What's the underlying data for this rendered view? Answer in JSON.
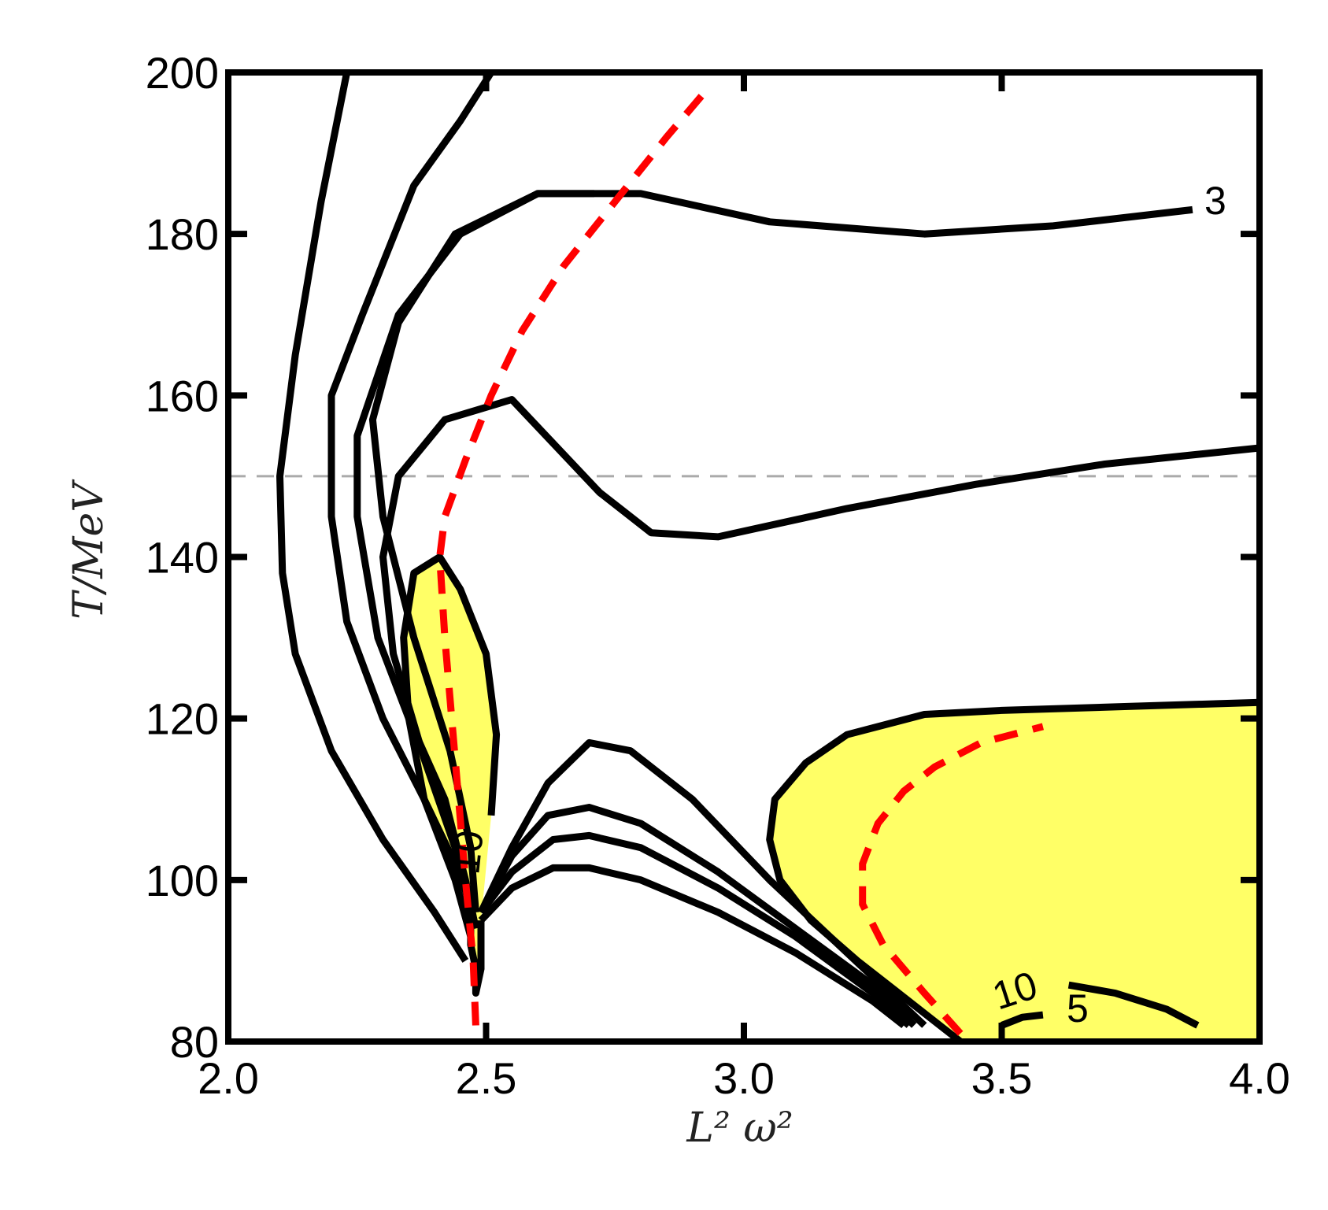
{
  "chart_data": {
    "type": "line",
    "title": "",
    "xlabel": "L² ω²",
    "ylabel": "T/MeV",
    "xlim": [
      2.0,
      4.0
    ],
    "ylim": [
      80,
      200
    ],
    "xticks": [
      "2.0",
      "2.5",
      "3.0",
      "3.5",
      "4.0"
    ],
    "yticks": [
      "80",
      "100",
      "120",
      "140",
      "160",
      "180",
      "200"
    ],
    "xtick_values": [
      2.0,
      2.5,
      3.0,
      3.5,
      4.0
    ],
    "ytick_values": [
      80,
      100,
      120,
      140,
      160,
      180,
      200
    ],
    "reference_line": {
      "y": 150,
      "style": "dashed",
      "color": "#aaaaaa"
    },
    "colors": {
      "contour": "#000000",
      "boundary": "#ff0000",
      "shade": "#ffff66",
      "reference": "#aaaaaa"
    },
    "contour_labels": [
      "3",
      "10",
      "10",
      "5"
    ],
    "series": [
      {
        "kind": "contour",
        "x": [
          2.23,
          2.18,
          2.13,
          2.1,
          2.105,
          2.13,
          2.2,
          2.3,
          2.4,
          2.46
        ],
        "y": [
          200,
          184,
          165,
          150,
          138,
          128,
          116,
          105,
          96,
          90
        ]
      },
      {
        "kind": "contour",
        "x": [
          2.51,
          2.45,
          2.36,
          2.26,
          2.2,
          2.2,
          2.23,
          2.3,
          2.38,
          2.44,
          2.47
        ],
        "y": [
          200,
          194,
          186,
          170,
          160,
          145,
          132,
          120,
          110,
          100,
          93
        ]
      },
      {
        "kind": "contour",
        "x": [
          2.71,
          2.6,
          2.45,
          2.33,
          2.25,
          2.25,
          2.29,
          2.35,
          2.42,
          2.46,
          2.48
        ],
        "y": [
          185,
          185,
          180,
          170,
          155,
          145,
          130,
          120,
          110,
          100,
          94
        ]
      },
      {
        "kind": "contour",
        "x": [
          3.87,
          3.6,
          3.35,
          3.05,
          2.8,
          2.6,
          2.44,
          2.33,
          2.28,
          2.3,
          2.36,
          2.43,
          2.47,
          2.48
        ],
        "y": [
          183,
          181,
          180,
          181.5,
          185,
          185,
          180,
          169,
          157,
          145,
          130,
          116,
          104,
          96
        ]
      },
      {
        "kind": "contour",
        "x": [
          4.0,
          3.7,
          3.45,
          3.2,
          2.95,
          2.82,
          2.72,
          2.55,
          2.42,
          2.33,
          2.3,
          2.32,
          2.38,
          2.44,
          2.47
        ],
        "y": [
          153.5,
          151.5,
          149,
          146,
          142.5,
          143,
          148,
          159.5,
          157,
          150,
          140,
          128,
          115,
          104,
          96
        ]
      },
      {
        "kind": "contour",
        "x": [
          2.51,
          2.52,
          2.5,
          2.45,
          2.41,
          2.36,
          2.34,
          2.35,
          2.38,
          2.44,
          2.47,
          2.47,
          2.48,
          2.48,
          2.49,
          2.49
        ],
        "y": [
          108,
          118,
          128,
          136,
          140,
          138,
          130,
          120,
          110,
          102,
          97,
          92,
          89,
          86,
          89,
          95
        ]
      },
      {
        "kind": "contour",
        "x": [
          2.49,
          2.55,
          2.62,
          2.7,
          2.78,
          2.9,
          3.05,
          3.2,
          3.3,
          3.35
        ],
        "y": [
          96,
          104,
          112,
          117,
          116,
          110,
          100,
          91,
          85,
          82
        ]
      },
      {
        "kind": "contour",
        "x": [
          2.49,
          2.55,
          2.62,
          2.7,
          2.8,
          2.95,
          3.1,
          3.25,
          3.33
        ],
        "y": [
          96,
          103,
          108,
          109,
          107,
          101,
          94,
          87,
          82
        ]
      },
      {
        "kind": "contour",
        "x": [
          2.49,
          2.55,
          2.63,
          2.7,
          2.8,
          2.95,
          3.1,
          3.25,
          3.32
        ],
        "y": [
          96,
          101,
          105,
          105.5,
          104,
          99,
          93,
          86,
          82
        ]
      },
      {
        "kind": "contour",
        "x": [
          2.49,
          2.55,
          2.63,
          2.7,
          2.8,
          2.95,
          3.1,
          3.25,
          3.31
        ],
        "y": [
          95,
          99,
          101.5,
          101.5,
          100,
          96,
          91,
          85,
          82
        ]
      },
      {
        "kind": "contour",
        "x": [
          4.0,
          3.75,
          3.5,
          3.35,
          3.2,
          3.12,
          3.06,
          3.05,
          3.07,
          3.13,
          3.22,
          3.32,
          3.38,
          3.42
        ],
        "y": [
          122,
          121.5,
          121,
          120.5,
          118,
          114.5,
          110,
          105,
          100,
          95,
          90,
          85,
          82,
          80
        ]
      },
      {
        "kind": "contour",
        "x": [
          3.63,
          3.72,
          3.82,
          3.88
        ],
        "y": [
          87,
          86,
          84,
          82
        ]
      },
      {
        "kind": "contour",
        "x": [
          3.5,
          3.54,
          3.58
        ],
        "y": [
          82,
          83,
          83.3
        ]
      },
      {
        "kind": "boundary",
        "x": [
          2.48,
          2.475,
          2.46,
          2.42,
          2.41,
          2.42,
          2.46,
          2.51,
          2.57,
          2.65,
          2.75,
          2.85,
          2.93
        ],
        "y": [
          82,
          90,
          100,
          130,
          140,
          145,
          152,
          160,
          168,
          176,
          184,
          192,
          198
        ]
      },
      {
        "kind": "boundary",
        "x": [
          3.42,
          3.35,
          3.27,
          3.23,
          3.23,
          3.26,
          3.31,
          3.37,
          3.46,
          3.58
        ],
        "y": [
          81,
          86,
          92,
          97,
          102,
          107,
          111,
          114,
          117,
          119
        ]
      }
    ]
  }
}
